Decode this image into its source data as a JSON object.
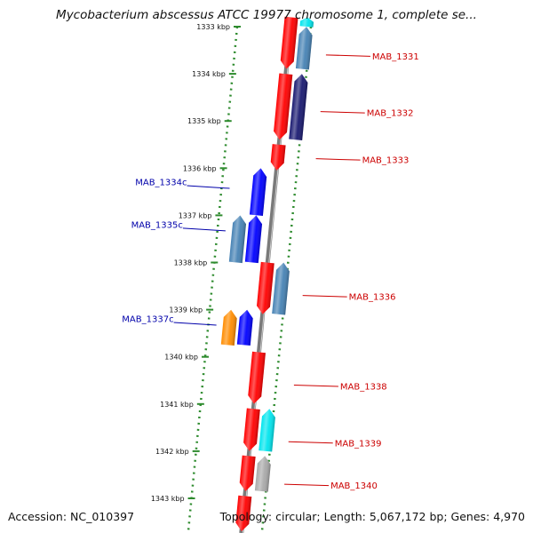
{
  "title": "Mycobacterium abscessus ATCC 19977 chromosome 1, complete se...",
  "footer": {
    "accession": "Accession: NC_010397",
    "summary": "Topology: circular; Length: 5,067,172 bp; Genes: 4,970"
  },
  "colors": {
    "backbone": "#7a7a7a",
    "tick_dots": "#2e8b2e",
    "forward_label": "#cc0000",
    "reverse_label": "#0000aa",
    "red": "#ff0000",
    "steelblue": "#4682b4",
    "navy": "#191970",
    "blue": "#0000ff",
    "orange": "#ff8c00",
    "cyan": "#00e5ee",
    "grey": "#a9a9a9"
  },
  "scale_labels": [
    "1333 kbp",
    "1334 kbp",
    "1335 kbp",
    "1336 kbp",
    "1337 kbp",
    "1338 kbp",
    "1339 kbp",
    "1340 kbp",
    "1341 kbp",
    "1342 kbp",
    "1343 kbp"
  ],
  "scale_kbp": [
    1333,
    1334,
    1335,
    1336,
    1337,
    1338,
    1339,
    1340,
    1341,
    1342,
    1343
  ],
  "forward_genes": [
    {
      "name": "MAB_1331",
      "kbp": 1333.6
    },
    {
      "name": "MAB_1332",
      "kbp": 1334.8
    },
    {
      "name": "MAB_1333",
      "kbp": 1335.8
    },
    {
      "name": "MAB_1336",
      "kbp": 1338.7
    },
    {
      "name": "MAB_1338",
      "kbp": 1340.6
    },
    {
      "name": "MAB_1339",
      "kbp": 1341.8
    },
    {
      "name": "MAB_1340",
      "kbp": 1342.7
    }
  ],
  "reverse_genes": [
    {
      "name": "MAB_1334c",
      "kbp": 1336.4
    },
    {
      "name": "MAB_1335c",
      "kbp": 1337.3
    },
    {
      "name": "MAB_1337c",
      "kbp": 1339.3
    }
  ],
  "features": [
    {
      "lane": 1,
      "start": 1332.8,
      "end": 1333.0,
      "color": "cyan",
      "dir": "up"
    },
    {
      "lane": 1,
      "start": 1333.0,
      "end": 1333.9,
      "color": "steelblue",
      "dir": "up"
    },
    {
      "lane": 1,
      "start": 1334.0,
      "end": 1335.4,
      "color": "navy",
      "dir": "up"
    },
    {
      "lane": 0,
      "start": 1332.8,
      "end": 1333.9,
      "color": "red",
      "dir": "down"
    },
    {
      "lane": 0,
      "start": 1334.0,
      "end": 1335.4,
      "color": "red",
      "dir": "down"
    },
    {
      "lane": 0,
      "start": 1335.5,
      "end": 1336.05,
      "color": "red",
      "dir": "down"
    },
    {
      "lane": -1,
      "start": 1336.0,
      "end": 1337.0,
      "color": "blue",
      "dir": "up"
    },
    {
      "lane": -1,
      "start": 1337.0,
      "end": 1338.0,
      "color": "blue",
      "dir": "up"
    },
    {
      "lane": -2,
      "start": 1337.0,
      "end": 1338.0,
      "color": "steelblue",
      "dir": "up"
    },
    {
      "lane": 0,
      "start": 1338.0,
      "end": 1339.1,
      "color": "red",
      "dir": "down"
    },
    {
      "lane": 1,
      "start": 1338.0,
      "end": 1339.1,
      "color": "steelblue",
      "dir": "up"
    },
    {
      "lane": -2,
      "start": 1339.0,
      "end": 1339.75,
      "color": "orange",
      "dir": "up"
    },
    {
      "lane": -1,
      "start": 1339.0,
      "end": 1339.75,
      "color": "blue",
      "dir": "up"
    },
    {
      "lane": 0,
      "start": 1339.9,
      "end": 1341.0,
      "color": "red",
      "dir": "down"
    },
    {
      "lane": 0,
      "start": 1341.1,
      "end": 1342.0,
      "color": "red",
      "dir": "down"
    },
    {
      "lane": 1,
      "start": 1341.1,
      "end": 1342.0,
      "color": "cyan",
      "dir": "up"
    },
    {
      "lane": 0,
      "start": 1342.1,
      "end": 1342.85,
      "color": "red",
      "dir": "down"
    },
    {
      "lane": 1,
      "start": 1342.1,
      "end": 1342.85,
      "color": "grey",
      "dir": "up"
    },
    {
      "lane": 0,
      "start": 1342.95,
      "end": 1343.7,
      "color": "red",
      "dir": "down"
    }
  ]
}
